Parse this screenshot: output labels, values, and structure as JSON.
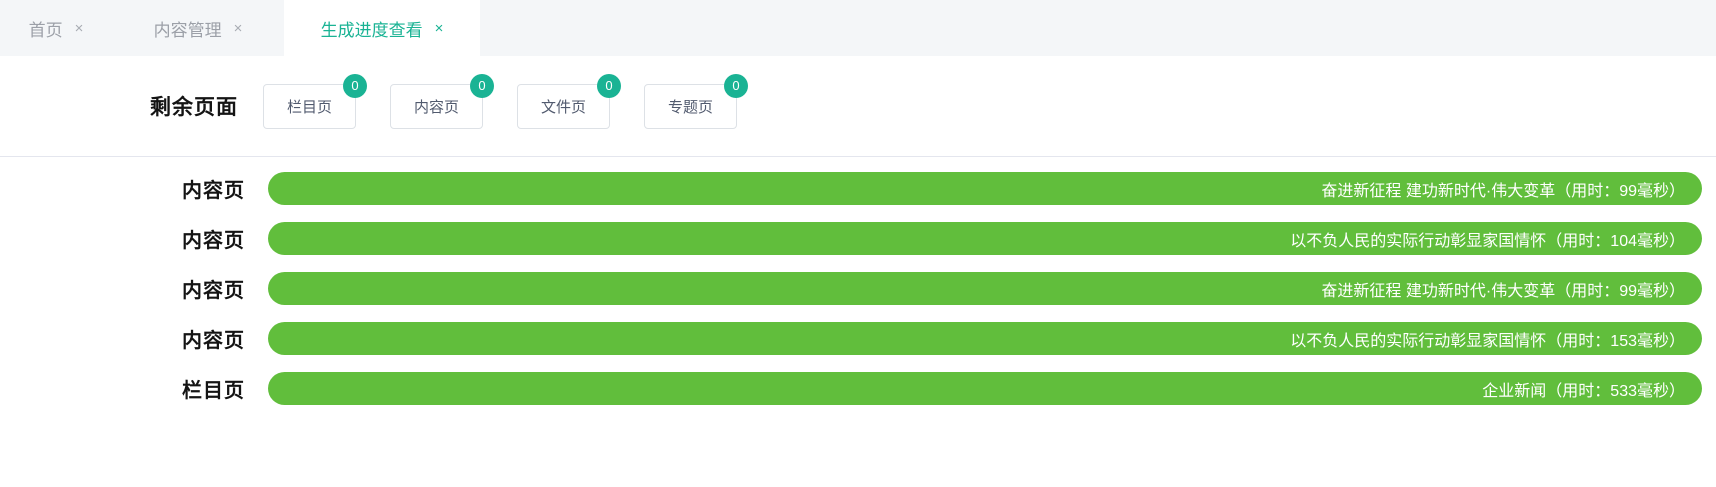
{
  "tabs": [
    {
      "label": "首页",
      "close": "×",
      "active": false
    },
    {
      "label": "内容管理",
      "close": "×",
      "active": false
    },
    {
      "label": "生成进度查看",
      "close": "×",
      "active": true
    }
  ],
  "header": {
    "title": "剩余页面",
    "counters": [
      {
        "label": "栏目页",
        "badge": "0"
      },
      {
        "label": "内容页",
        "badge": "0"
      },
      {
        "label": "文件页",
        "badge": "0"
      },
      {
        "label": "专题页",
        "badge": "0"
      }
    ]
  },
  "progress": {
    "rows": [
      {
        "type": "内容页",
        "text": "奋进新征程 建功新时代·伟大变革（用时：99毫秒）"
      },
      {
        "type": "内容页",
        "text": "以不负人民的实际行动彰显家国情怀（用时：104毫秒）"
      },
      {
        "type": "内容页",
        "text": "奋进新征程 建功新时代·伟大变革（用时：99毫秒）"
      },
      {
        "type": "内容页",
        "text": "以不负人民的实际行动彰显家国情怀（用时：153毫秒）"
      },
      {
        "type": "栏目页",
        "text": "企业新闻（用时：533毫秒）"
      }
    ]
  },
  "colors": {
    "accent_teal": "#1ab394",
    "bar_green": "#61be3c",
    "tabbar_bg": "#f4f6f8",
    "inactive_tab_text": "#9ca0a8",
    "divider": "#e4e6ee"
  }
}
